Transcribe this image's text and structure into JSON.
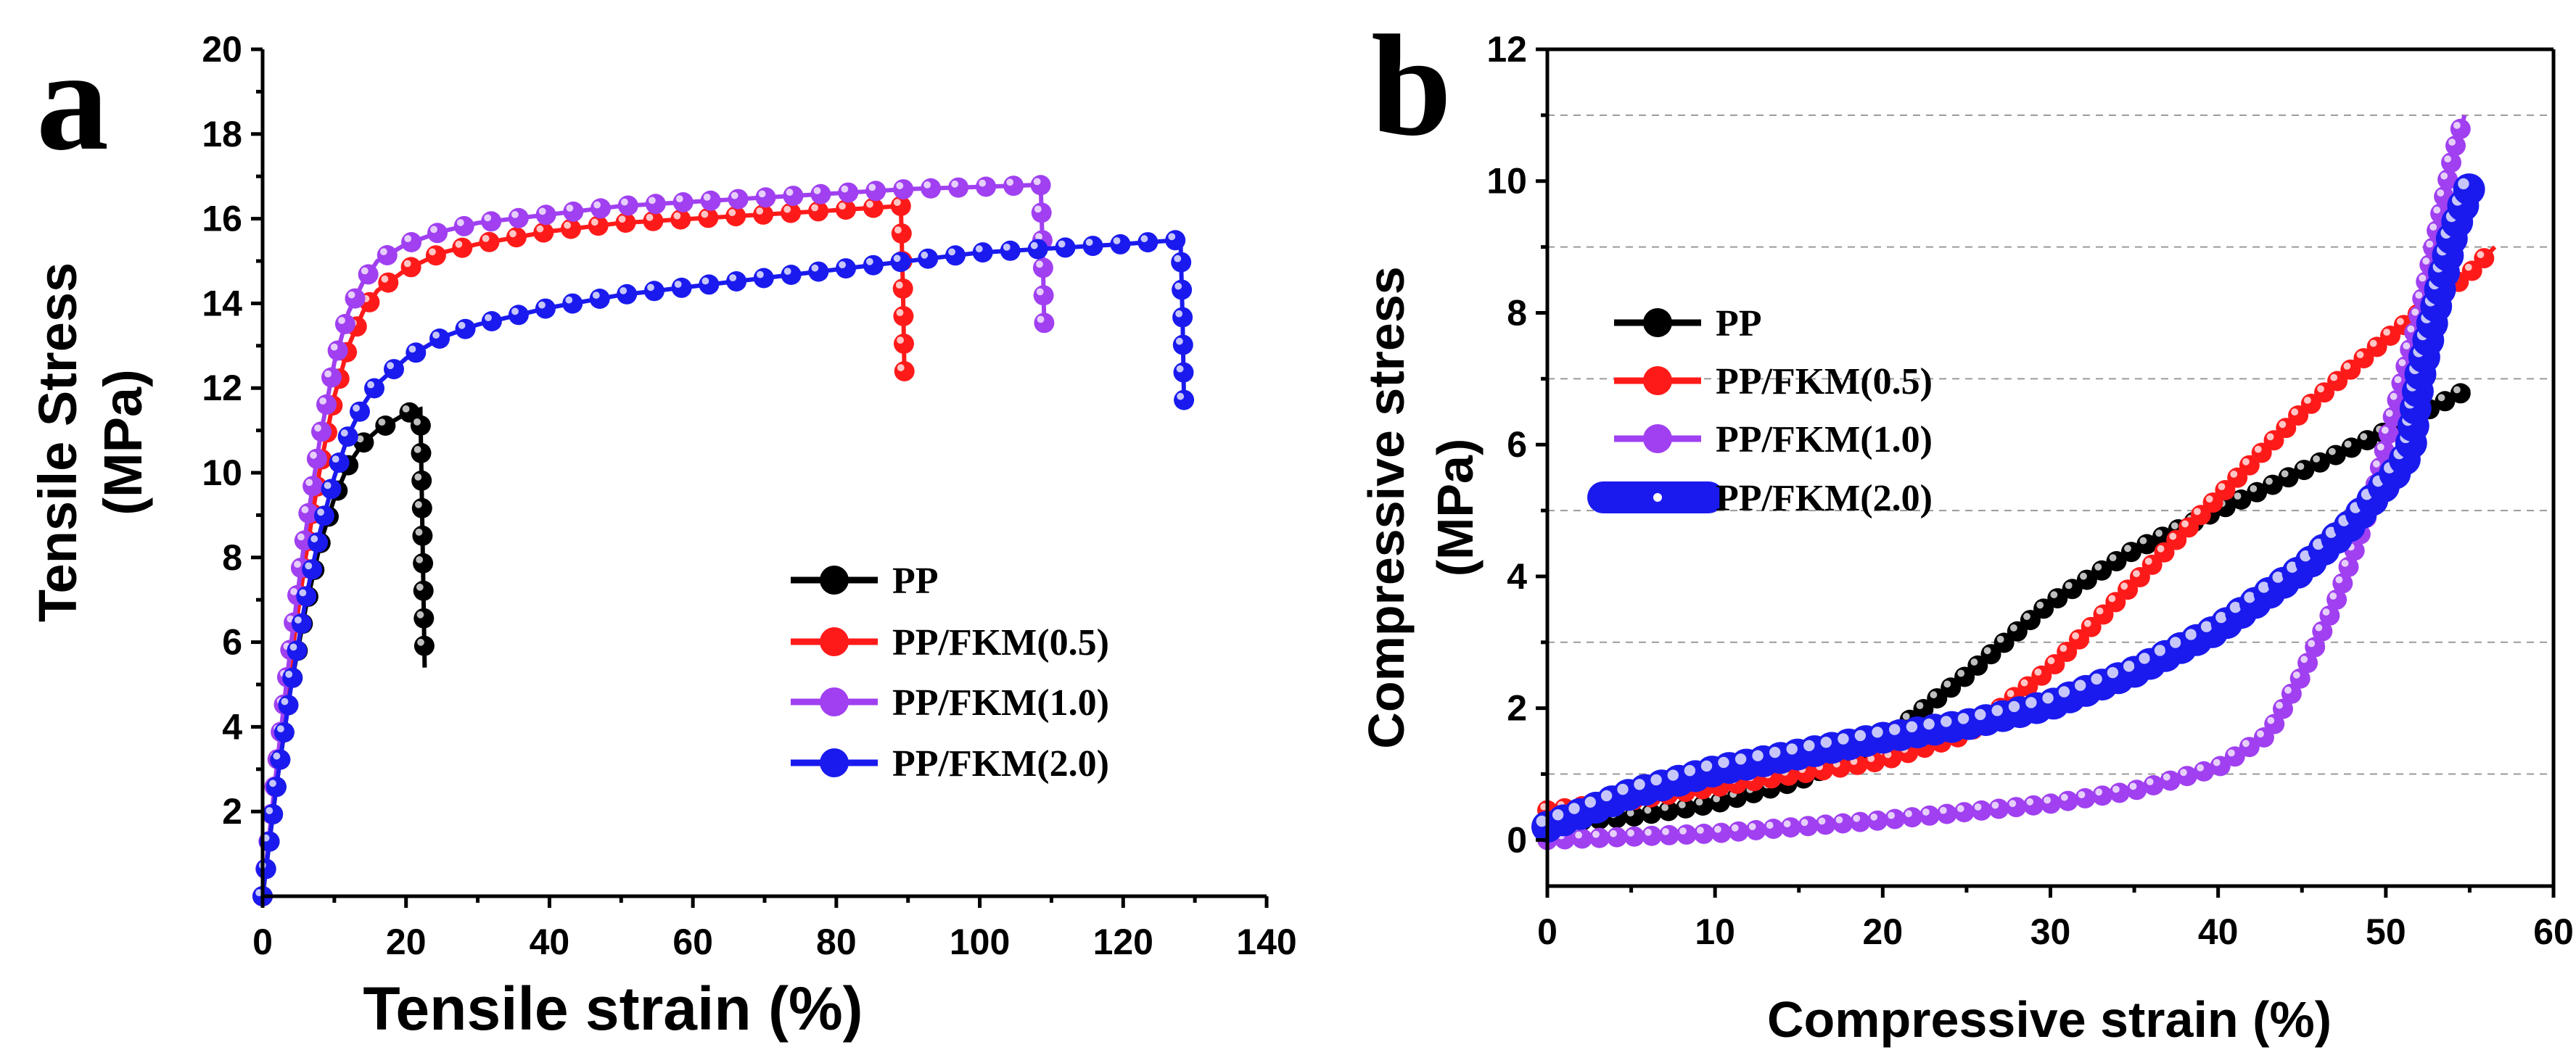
{
  "chart_data": [
    {
      "panel_label": "a",
      "type": "line",
      "xlabel": "Tensile strain (%)",
      "ylabel_line1": "Tensile Stress",
      "ylabel_line2": "(MPa)",
      "xlim": [
        0,
        140
      ],
      "ylim": [
        0,
        20
      ],
      "xticks": [
        0,
        20,
        40,
        60,
        80,
        100,
        120,
        140
      ],
      "yticks": [
        2,
        4,
        6,
        8,
        10,
        12,
        14,
        16,
        18,
        20
      ],
      "grid": false,
      "legend": "bottom-right",
      "series": [
        {
          "name": "PP",
          "color": "#000000",
          "x": [
            0,
            2,
            4,
            6,
            8,
            10,
            12,
            14,
            16,
            18,
            20,
            22,
            22.3,
            22.6
          ],
          "y": [
            0,
            2.7,
            5.0,
            6.8,
            8.3,
            9.4,
            10.2,
            10.7,
            11.0,
            11.2,
            11.4,
            11.5,
            8.5,
            5.4
          ]
        },
        {
          "name": "PP/FKM(0.5)",
          "color": "#ff1a1a",
          "x": [
            0,
            2,
            4,
            6,
            8,
            10,
            12,
            14,
            16,
            20,
            25,
            30,
            40,
            50,
            60,
            70,
            80,
            89,
            89.3,
            89.5
          ],
          "y": [
            0,
            2.9,
            5.6,
            8.0,
            10.1,
            11.8,
            13.0,
            13.8,
            14.3,
            14.8,
            15.2,
            15.4,
            15.7,
            15.9,
            16.0,
            16.1,
            16.2,
            16.3,
            14.3,
            12.3
          ]
        },
        {
          "name": "PP/FKM(1.0)",
          "color": "#a040f0",
          "x": [
            0,
            2,
            4,
            6,
            8,
            10,
            12,
            14,
            16,
            20,
            25,
            30,
            40,
            50,
            60,
            70,
            80,
            90,
            100,
            108.5,
            108.8,
            109
          ],
          "y": [
            0,
            3.1,
            6.0,
            8.6,
            10.8,
            12.6,
            13.8,
            14.5,
            15.0,
            15.4,
            15.7,
            15.9,
            16.1,
            16.3,
            16.4,
            16.5,
            16.6,
            16.7,
            16.75,
            16.8,
            15.1,
            13.4
          ]
        },
        {
          "name": "PP/FKM(2.0)",
          "color": "#1a1aee",
          "x": [
            0,
            2,
            4,
            6,
            8,
            10,
            12,
            14,
            16,
            20,
            25,
            30,
            40,
            50,
            60,
            70,
            80,
            90,
            100,
            110,
            120,
            128,
            128.3,
            128.5
          ],
          "y": [
            0,
            2.7,
            5.0,
            7.0,
            8.6,
            9.9,
            10.9,
            11.6,
            12.1,
            12.7,
            13.2,
            13.5,
            13.9,
            14.2,
            14.4,
            14.6,
            14.8,
            15.0,
            15.2,
            15.3,
            15.4,
            15.5,
            13.5,
            11.5
          ]
        }
      ]
    },
    {
      "panel_label": "b",
      "type": "line",
      "xlabel": "Compressive strain (%)",
      "ylabel_line1": "Compressive stress",
      "ylabel_line2": "(MPa)",
      "xlim": [
        0,
        60
      ],
      "ylim": [
        -0.7,
        12
      ],
      "xticks": [
        0,
        10,
        20,
        30,
        40,
        50,
        60
      ],
      "yticks": [
        0,
        2,
        4,
        6,
        8,
        10,
        12
      ],
      "gridlines_y": [
        1,
        3,
        5,
        7,
        9,
        11
      ],
      "grid": true,
      "legend": "top-left",
      "series": [
        {
          "name": "PP",
          "color": "#000000",
          "x": [
            0,
            5,
            10,
            15,
            20,
            25,
            30,
            35,
            40,
            45,
            50,
            55
          ],
          "y": [
            0.25,
            0.35,
            0.55,
            0.9,
            1.5,
            2.5,
            3.6,
            4.4,
            5.0,
            5.6,
            6.2,
            6.85
          ]
        },
        {
          "name": "PP/FKM(0.5)",
          "color": "#ff1a1a",
          "x": [
            0,
            5,
            10,
            15,
            20,
            25,
            30,
            35,
            40,
            45,
            50,
            55,
            56.5
          ],
          "y": [
            0.45,
            0.6,
            0.8,
            1.0,
            1.2,
            1.6,
            2.6,
            3.9,
            5.2,
            6.5,
            7.6,
            8.6,
            9.0
          ]
        },
        {
          "name": "PP/FKM(1.0)",
          "color": "#a040f0",
          "x": [
            0,
            10,
            20,
            30,
            35,
            40,
            43,
            45,
            47,
            49,
            50,
            51,
            52,
            53,
            54,
            54.7
          ],
          "y": [
            0.0,
            0.1,
            0.3,
            0.55,
            0.75,
            1.1,
            1.6,
            2.5,
            3.6,
            5.0,
            6.0,
            7.0,
            8.0,
            9.2,
            10.4,
            11.0
          ]
        },
        {
          "name": "PP/FKM(2.0)",
          "color": "#1a1aee",
          "x": [
            0,
            5,
            10,
            15,
            20,
            25,
            30,
            35,
            40,
            45,
            48,
            50,
            51,
            51.5,
            52,
            53,
            54,
            55
          ],
          "y": [
            0.2,
            0.7,
            1.05,
            1.3,
            1.55,
            1.75,
            2.05,
            2.55,
            3.2,
            4.1,
            4.8,
            5.4,
            5.7,
            6.0,
            7.0,
            8.1,
            9.2,
            9.9
          ]
        }
      ]
    }
  ]
}
